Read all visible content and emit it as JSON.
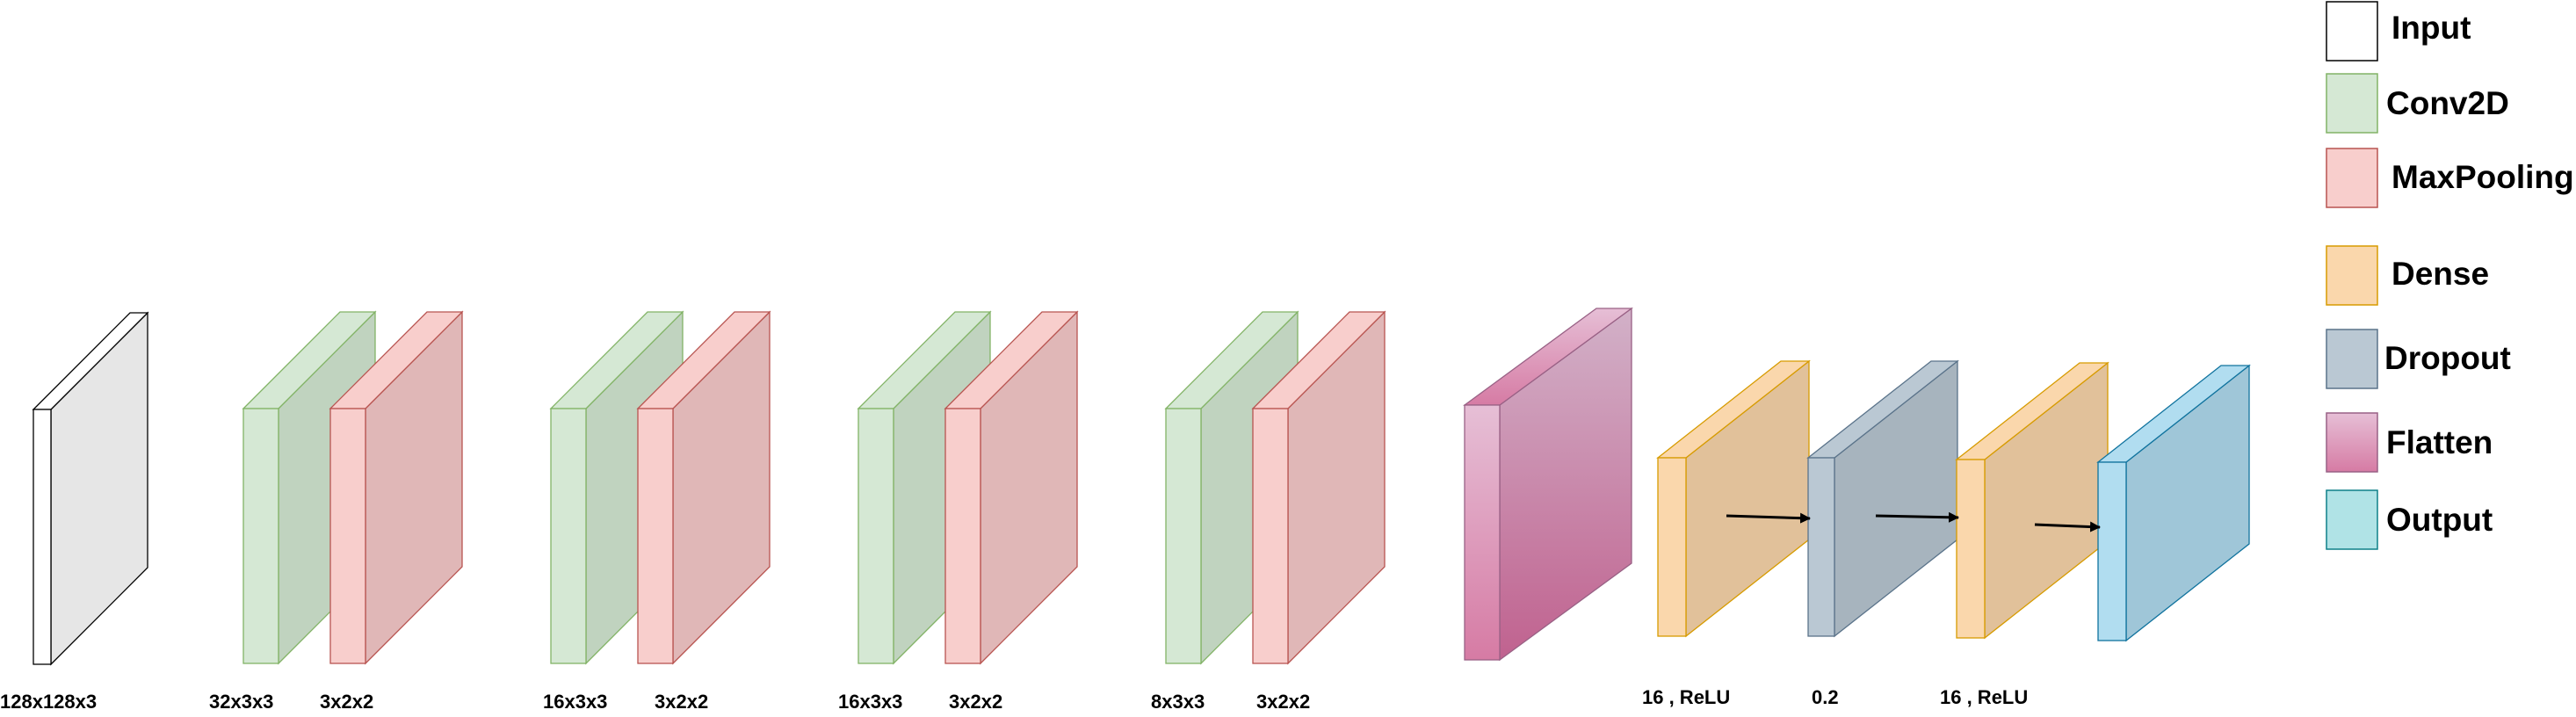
{
  "layer_types": {
    "input": {
      "label": "Input",
      "front": "#ffffff",
      "side": "#e6e6e6",
      "stroke": "#000000"
    },
    "conv": {
      "label": "Conv2D",
      "front": "#d5e8d4",
      "side": "#c0d3bf",
      "stroke": "#82b366"
    },
    "pool": {
      "label": "MaxPooling",
      "front": "#f8cecc",
      "side": "#e0b7b7",
      "stroke": "#b85450"
    },
    "dense": {
      "label": "Dense",
      "front": "#fad7ac",
      "side": "#e1c19a",
      "stroke": "#d79b00"
    },
    "dropout": {
      "label": "Dropout",
      "front": "#bac8d3",
      "side": "#a7b4be",
      "stroke": "#5a738a"
    },
    "flatten": {
      "label": "Flatten",
      "front_top": "#e6bfd6",
      "front_bottom": "#d67ba4",
      "side_top": "#d2b1c8",
      "side_bottom": "#c0628f",
      "stroke": "#996185"
    },
    "output": {
      "label": "Output",
      "front": "#b1ddf0",
      "side": "#9fc6d8",
      "stroke": "#10739e",
      "legend_fill": "#b0e3e6",
      "legend_stroke": "#0e8088"
    }
  },
  "legend_order": [
    "input",
    "conv",
    "pool",
    "dense",
    "dropout",
    "flatten",
    "output"
  ],
  "blocks": [
    {
      "name": "input-layer",
      "type": "input"
    },
    {
      "name": "conv2d-1",
      "type": "conv"
    },
    {
      "name": "maxpooling-1",
      "type": "pool"
    },
    {
      "name": "conv2d-2",
      "type": "conv"
    },
    {
      "name": "maxpooling-2",
      "type": "pool"
    },
    {
      "name": "conv2d-3",
      "type": "conv"
    },
    {
      "name": "maxpooling-3",
      "type": "pool"
    },
    {
      "name": "conv2d-4",
      "type": "conv"
    },
    {
      "name": "maxpooling-4",
      "type": "pool"
    },
    {
      "name": "flatten-layer",
      "type": "flatten"
    },
    {
      "name": "dense-1",
      "type": "dense"
    },
    {
      "name": "dropout-layer",
      "type": "dropout"
    },
    {
      "name": "dense-2",
      "type": "dense"
    },
    {
      "name": "output-layer",
      "type": "output"
    }
  ],
  "labels": [
    {
      "name": "input-size-label",
      "text": "128x128x3"
    },
    {
      "name": "conv2d-1-label",
      "text": "32x3x3"
    },
    {
      "name": "maxpooling-1-label",
      "text": "3x2x2"
    },
    {
      "name": "conv2d-2-label",
      "text": "16x3x3"
    },
    {
      "name": "maxpooling-2-label",
      "text": "3x2x2"
    },
    {
      "name": "conv2d-3-label",
      "text": "16x3x3"
    },
    {
      "name": "maxpooling-3-label",
      "text": "3x2x2"
    },
    {
      "name": "conv2d-4-label",
      "text": "8x3x3"
    },
    {
      "name": "maxpooling-4-label",
      "text": "3x2x2"
    },
    {
      "name": "dense-1-label",
      "text": "16 , ReLU"
    },
    {
      "name": "dropout-label",
      "text": "0.2"
    },
    {
      "name": "dense-2-label",
      "text": "16 , ReLU"
    }
  ],
  "arrows": [
    {
      "name": "arrow-dense1-to-dropout"
    },
    {
      "name": "arrow-dropout-to-dense2"
    },
    {
      "name": "arrow-dense2-to-output"
    }
  ]
}
